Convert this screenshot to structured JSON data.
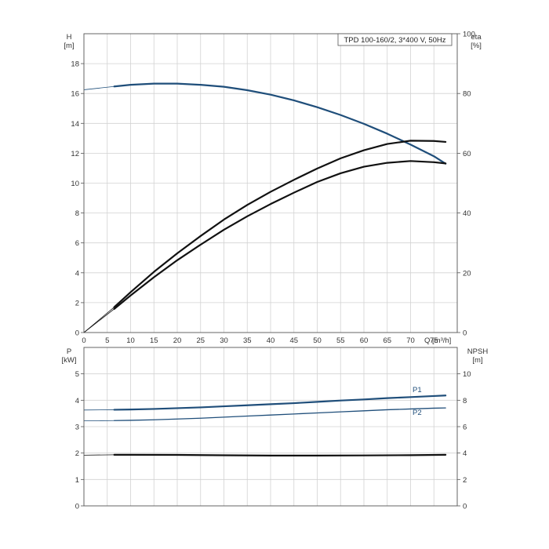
{
  "chart_data": [
    {
      "type": "line",
      "title": "TPD 100-160/2, 3*400 V, 50Hz",
      "xlabel": "Q [m³/h]",
      "ylabel": "H",
      "ylabel_unit": "[m]",
      "y2label": "eta",
      "y2label_unit": "[%]",
      "xlim": [
        0,
        80
      ],
      "ylim": [
        0,
        20
      ],
      "y2lim": [
        0,
        100
      ],
      "x_ticks": [
        "0",
        "5",
        "10",
        "15",
        "20",
        "25",
        "30",
        "35",
        "40",
        "45",
        "50",
        "55",
        "60",
        "65",
        "70",
        "75"
      ],
      "y_ticks": [
        "0",
        "2",
        "4",
        "6",
        "8",
        "10",
        "12",
        "14",
        "16",
        "18"
      ],
      "y2_ticks": [
        "0",
        "20",
        "40",
        "60",
        "80",
        "100"
      ],
      "grid": true,
      "series": [
        {
          "axis": "left",
          "color": "#1f4e7a",
          "x": [
            0,
            6.5,
            10,
            15,
            20,
            25,
            30,
            35,
            40,
            45,
            50,
            55,
            60,
            65,
            70,
            75,
            77.5
          ],
          "values": [
            16.25,
            16.47,
            16.58,
            16.66,
            16.66,
            16.58,
            16.45,
            16.22,
            15.92,
            15.54,
            15.08,
            14.56,
            13.97,
            13.31,
            12.58,
            11.8,
            11.3
          ]
        },
        {
          "axis": "right",
          "color": "#111111",
          "x": [
            0,
            6.5,
            10,
            15,
            20,
            25,
            30,
            35,
            40,
            45,
            50,
            55,
            60,
            65,
            70,
            75,
            77.5
          ],
          "values": [
            0,
            8.5,
            13.5,
            20.3,
            26.5,
            32.3,
            37.8,
            42.7,
            47.1,
            51.1,
            54.9,
            58.3,
            61.0,
            63.1,
            64.2,
            64.1,
            63.8
          ]
        },
        {
          "axis": "right",
          "color": "#111111",
          "x": [
            0,
            6.5,
            10,
            15,
            20,
            25,
            30,
            35,
            40,
            45,
            50,
            55,
            60,
            65,
            70,
            75,
            77.5
          ],
          "values": [
            0,
            7.9,
            12.4,
            18.5,
            24.2,
            29.4,
            34.4,
            38.9,
            43.0,
            46.8,
            50.4,
            53.3,
            55.5,
            56.8,
            57.4,
            57.0,
            56.6
          ]
        }
      ]
    },
    {
      "type": "line",
      "ylabel": "P",
      "ylabel_unit": "[kW]",
      "y2label": "NPSH",
      "y2label_unit": "[m]",
      "xlim": [
        0,
        80
      ],
      "ylim": [
        0,
        6
      ],
      "y2lim": [
        0,
        12
      ],
      "y_ticks": [
        "0",
        "1",
        "2",
        "3",
        "4",
        "5"
      ],
      "y2_ticks": [
        "0",
        "2",
        "4",
        "6",
        "8",
        "10"
      ],
      "grid": true,
      "series": [
        {
          "name": "P1",
          "axis": "left",
          "color": "#1f4e7a",
          "x": [
            0,
            6.5,
            10,
            15,
            20,
            25,
            30,
            35,
            40,
            45,
            50,
            55,
            60,
            65,
            70,
            75,
            77.5
          ],
          "values": [
            3.63,
            3.64,
            3.65,
            3.67,
            3.7,
            3.73,
            3.77,
            3.81,
            3.85,
            3.89,
            3.94,
            3.99,
            4.03,
            4.08,
            4.12,
            4.16,
            4.18
          ]
        },
        {
          "name": "P2",
          "axis": "left",
          "color": "#1f4e7a",
          "x": [
            0,
            6.5,
            10,
            15,
            20,
            25,
            30,
            35,
            40,
            45,
            50,
            55,
            60,
            65,
            70,
            75,
            77.5
          ],
          "values": [
            3.22,
            3.23,
            3.24,
            3.26,
            3.29,
            3.32,
            3.36,
            3.4,
            3.44,
            3.48,
            3.52,
            3.56,
            3.6,
            3.64,
            3.67,
            3.7,
            3.71
          ]
        },
        {
          "axis": "right",
          "color": "#111111",
          "x": [
            0,
            6.5,
            10,
            20,
            30,
            40,
            50,
            60,
            70,
            77.5
          ],
          "values": [
            3.84,
            3.87,
            3.87,
            3.86,
            3.83,
            3.81,
            3.81,
            3.82,
            3.84,
            3.87
          ]
        }
      ]
    }
  ]
}
